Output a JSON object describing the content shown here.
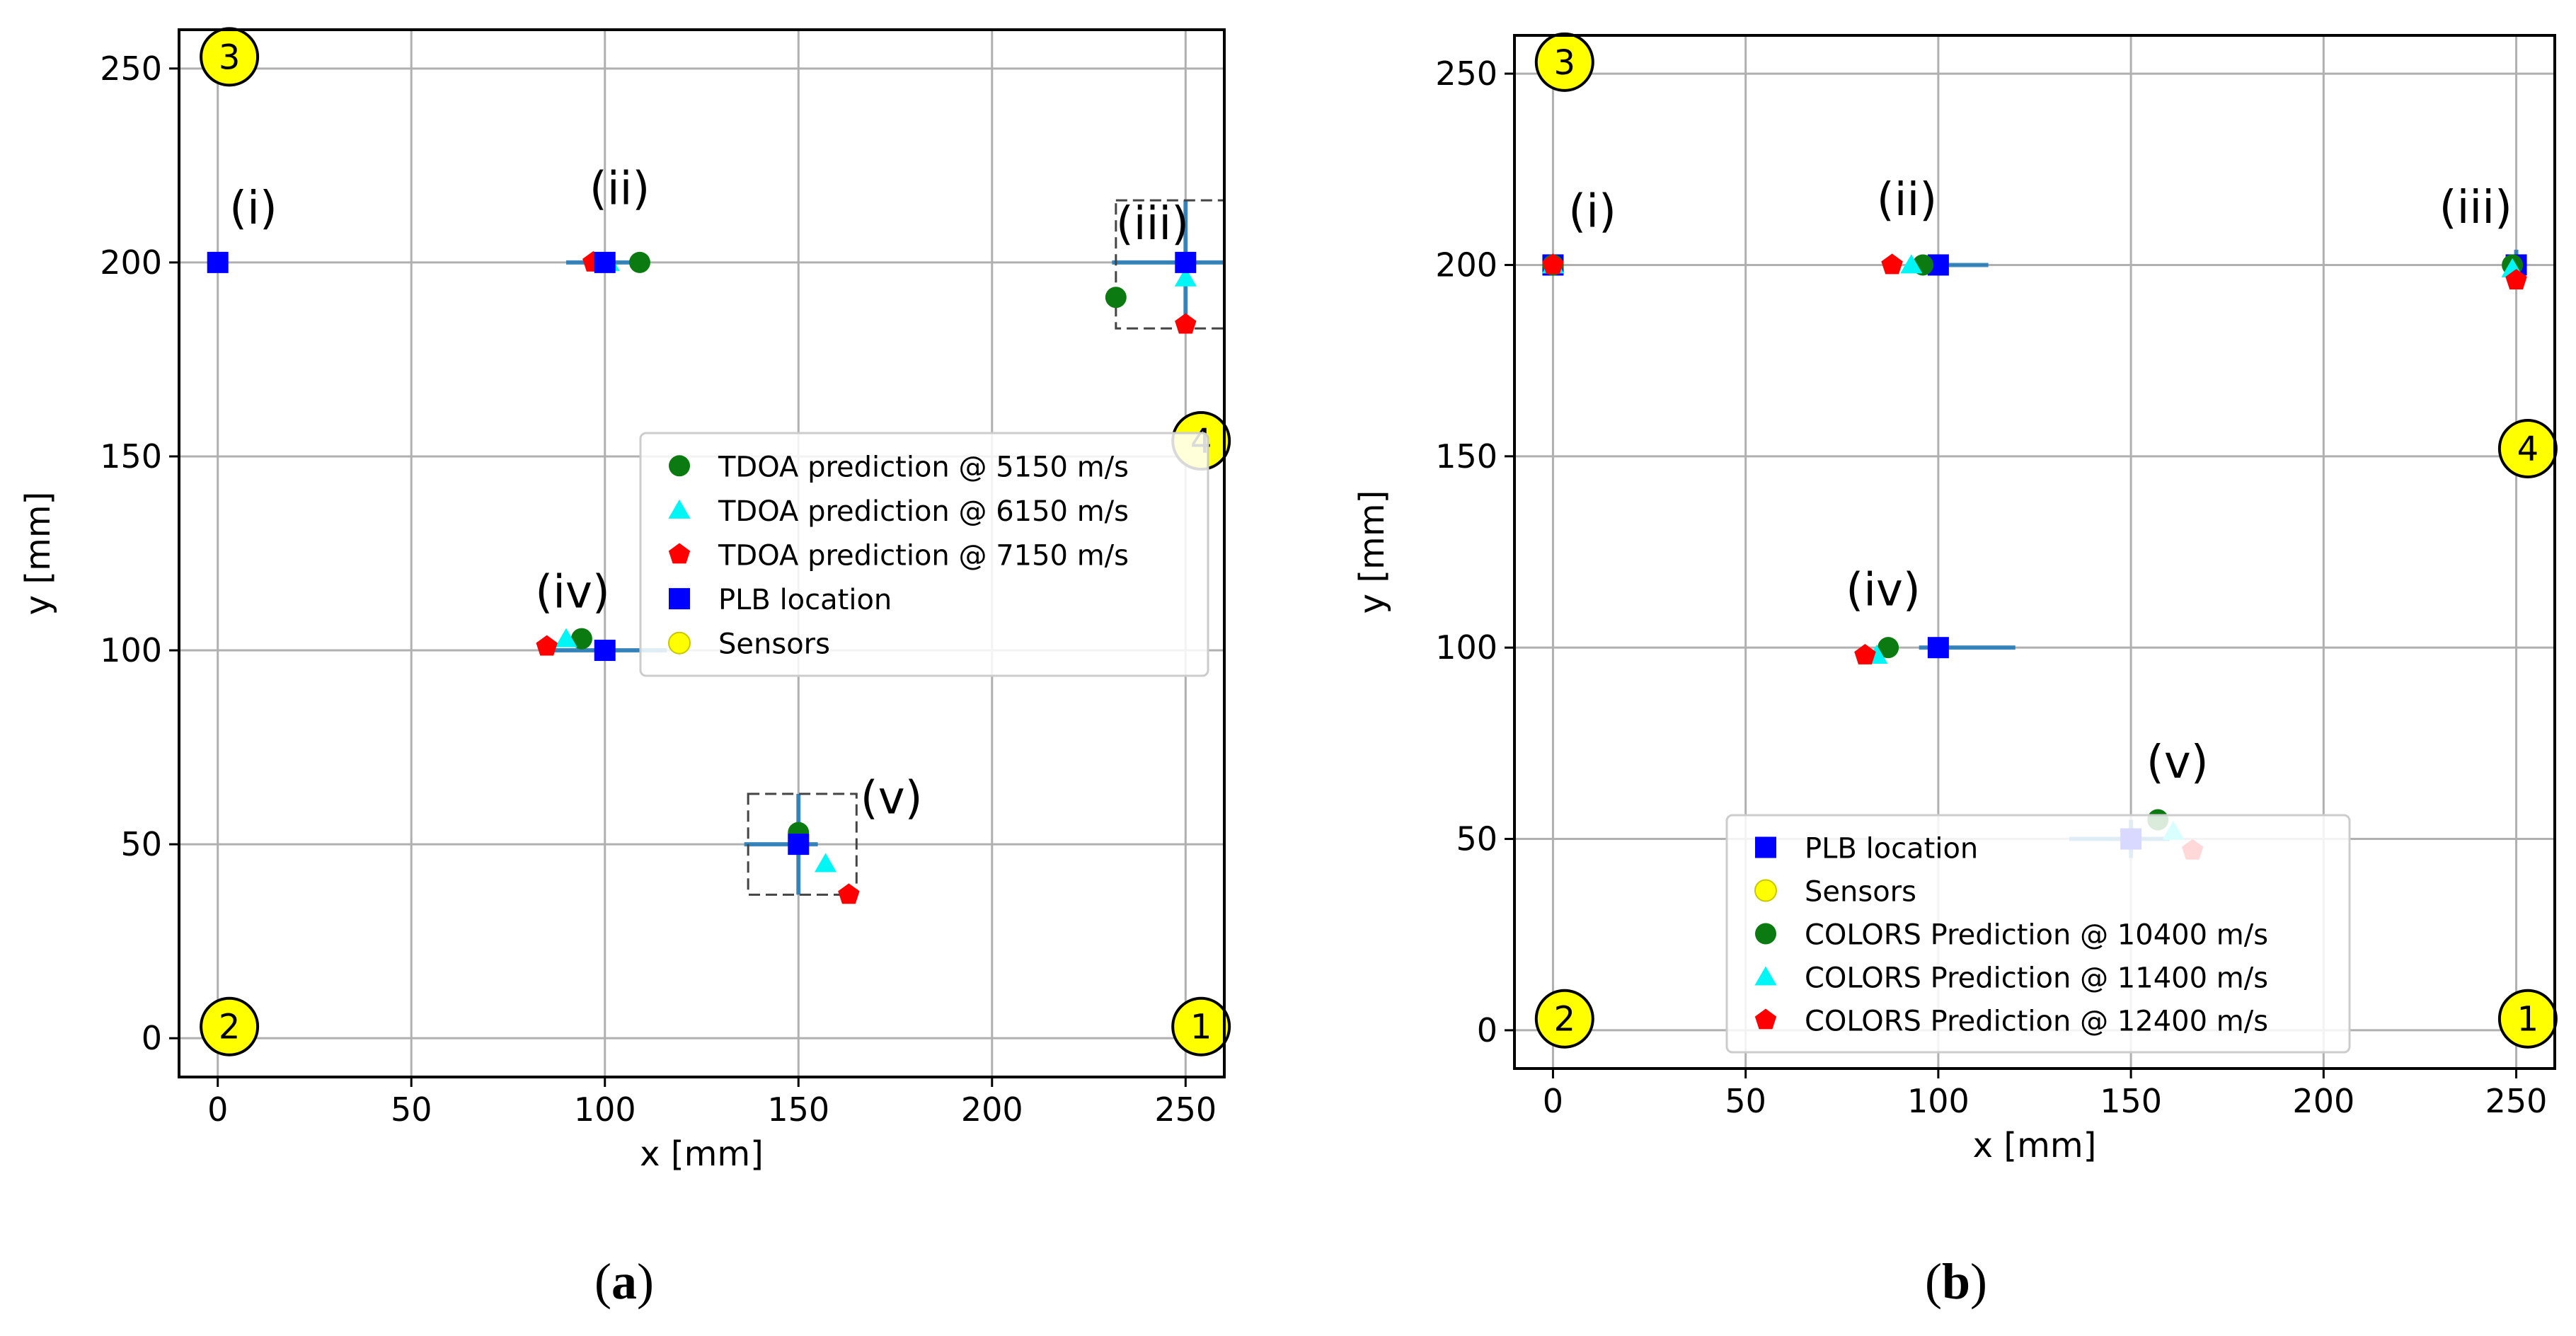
{
  "colors": {
    "tdoa_5150": "#0b7a10",
    "tdoa_6150": "#00f5f5",
    "tdoa_7150": "#ff0000",
    "plb": "#0000ff",
    "sensor_fill": "#ffff00",
    "error_bar": "#1f77b4",
    "grid": "#b0b0b0",
    "inset_box": "#444444"
  },
  "captions": {
    "a": "(a)",
    "b": "(b)"
  },
  "chart_data": [
    {
      "type": "scatter",
      "panel": "a",
      "title": "",
      "xlabel": "x [mm]",
      "ylabel": "y [mm]",
      "xlim": [
        -10,
        260
      ],
      "ylim": [
        -10,
        260
      ],
      "x_ticks": [
        0,
        50,
        100,
        150,
        200,
        250
      ],
      "y_ticks": [
        0,
        50,
        100,
        150,
        200,
        250
      ],
      "grid": true,
      "legend_position": "center-right",
      "sensors": [
        {
          "label": "1",
          "x": 254,
          "y": 3
        },
        {
          "label": "2",
          "x": 3,
          "y": 3
        },
        {
          "label": "3",
          "x": 3,
          "y": 253
        },
        {
          "label": "4",
          "x": 254,
          "y": 154
        }
      ],
      "series": [
        {
          "name": "TDOA prediction @ 5150 m/s",
          "marker": "circle",
          "color": "#0b7a10",
          "points": [
            [
              109,
              200
            ],
            [
              232,
              191
            ],
            [
              94,
              103
            ],
            [
              150,
              53
            ]
          ]
        },
        {
          "name": "TDOA prediction @ 6150 m/s",
          "marker": "triangle",
          "color": "#00f5f5",
          "points": [
            [
              101,
              200
            ],
            [
              250,
              196
            ],
            [
              90,
              103
            ],
            [
              157,
              45
            ]
          ]
        },
        {
          "name": "TDOA prediction @ 7150 m/s",
          "marker": "pentagon",
          "color": "#ff0000",
          "points": [
            [
              97,
              200
            ],
            [
              250,
              184
            ],
            [
              85,
              101
            ],
            [
              163,
              37
            ]
          ]
        },
        {
          "name": "PLB location",
          "marker": "square",
          "color": "#0000ff",
          "points": [
            [
              0,
              200
            ],
            [
              100,
              200
            ],
            [
              250,
              200
            ],
            [
              100,
              100
            ],
            [
              150,
              50
            ]
          ]
        },
        {
          "name": "Sensors",
          "marker": "circle-outline",
          "color": "#ffff00",
          "points": []
        }
      ],
      "error_bars": [
        {
          "x": 100,
          "y": 200,
          "xerr": [
            10,
            10
          ],
          "yerr": [
            0,
            0
          ]
        },
        {
          "x": 250,
          "y": 200,
          "xerr": [
            19,
            10
          ],
          "yerr": [
            17,
            16
          ]
        },
        {
          "x": 100,
          "y": 100,
          "xerr": [
            16,
            16
          ],
          "yerr": [
            0,
            0
          ]
        },
        {
          "x": 150,
          "y": 50,
          "xerr": [
            14,
            5
          ],
          "yerr": [
            13,
            13
          ]
        }
      ],
      "inset_boxes": [
        {
          "x0": 232,
          "x1": 260,
          "y0": 183,
          "y1": 216
        },
        {
          "x0": 137,
          "x1": 165,
          "y0": 37,
          "y1": 63
        }
      ],
      "annotations": [
        {
          "text": "(i)",
          "x": 3,
          "y": 210
        },
        {
          "text": "(ii)",
          "x": 96,
          "y": 215
        },
        {
          "text": "(iii)",
          "x": 232,
          "y": 206
        },
        {
          "text": "(iv)",
          "x": 82,
          "y": 111
        },
        {
          "text": "(v)",
          "x": 166,
          "y": 58
        }
      ]
    },
    {
      "type": "scatter",
      "panel": "b",
      "title": "",
      "xlabel": "x [mm]",
      "ylabel": "y [mm]",
      "xlim": [
        -10,
        260
      ],
      "ylim": [
        -10,
        260
      ],
      "x_ticks": [
        0,
        50,
        100,
        150,
        200,
        250
      ],
      "y_ticks": [
        0,
        50,
        100,
        150,
        200,
        250
      ],
      "grid": true,
      "legend_position": "lower-center",
      "sensors": [
        {
          "label": "1",
          "x": 253,
          "y": 3
        },
        {
          "label": "2",
          "x": 3,
          "y": 3
        },
        {
          "label": "3",
          "x": 3,
          "y": 253
        },
        {
          "label": "4",
          "x": 253,
          "y": 152
        }
      ],
      "series": [
        {
          "name": "PLB location",
          "marker": "square",
          "color": "#0000ff",
          "points": [
            [
              0,
              200
            ],
            [
              100,
              200
            ],
            [
              250,
              200
            ],
            [
              100,
              100
            ],
            [
              150,
              50
            ]
          ]
        },
        {
          "name": "Sensors",
          "marker": "circle-outline",
          "color": "#ffff00",
          "points": []
        },
        {
          "name": "COLORS Prediction @ 10400 m/s",
          "marker": "circle",
          "color": "#0b7a10",
          "points": [
            [
              0,
              200
            ],
            [
              96,
              200
            ],
            [
              249,
              200
            ],
            [
              87,
              100
            ],
            [
              157,
              55
            ]
          ]
        },
        {
          "name": "COLORS Prediction @ 11400 m/s",
          "marker": "triangle",
          "color": "#00f5f5",
          "points": [
            [
              0,
              200
            ],
            [
              93,
              200
            ],
            [
              249,
              199
            ],
            [
              84,
              98
            ],
            [
              161,
              52
            ]
          ]
        },
        {
          "name": "COLORS Prediction @ 12400 m/s",
          "marker": "pentagon",
          "color": "#ff0000",
          "points": [
            [
              0,
              200
            ],
            [
              88,
              200
            ],
            [
              250,
              196
            ],
            [
              81,
              98
            ],
            [
              166,
              47
            ]
          ]
        }
      ],
      "error_bars": [
        {
          "x": 100,
          "y": 200,
          "xerr": [
            3,
            13
          ],
          "yerr": [
            0,
            0
          ]
        },
        {
          "x": 250,
          "y": 200,
          "xerr": [
            2,
            2
          ],
          "yerr": [
            2,
            4
          ]
        },
        {
          "x": 100,
          "y": 100,
          "xerr": [
            5,
            20
          ],
          "yerr": [
            0,
            0
          ]
        },
        {
          "x": 150,
          "y": 50,
          "xerr": [
            16,
            10
          ],
          "yerr": [
            5,
            5
          ]
        }
      ],
      "inset_boxes": [],
      "annotations": [
        {
          "text": "(i)",
          "x": 4,
          "y": 210
        },
        {
          "text": "(ii)",
          "x": 84,
          "y": 213
        },
        {
          "text": "(iii)",
          "x": 230,
          "y": 211
        },
        {
          "text": "(iv)",
          "x": 76,
          "y": 111
        },
        {
          "text": "(v)",
          "x": 154,
          "y": 66
        }
      ]
    }
  ]
}
